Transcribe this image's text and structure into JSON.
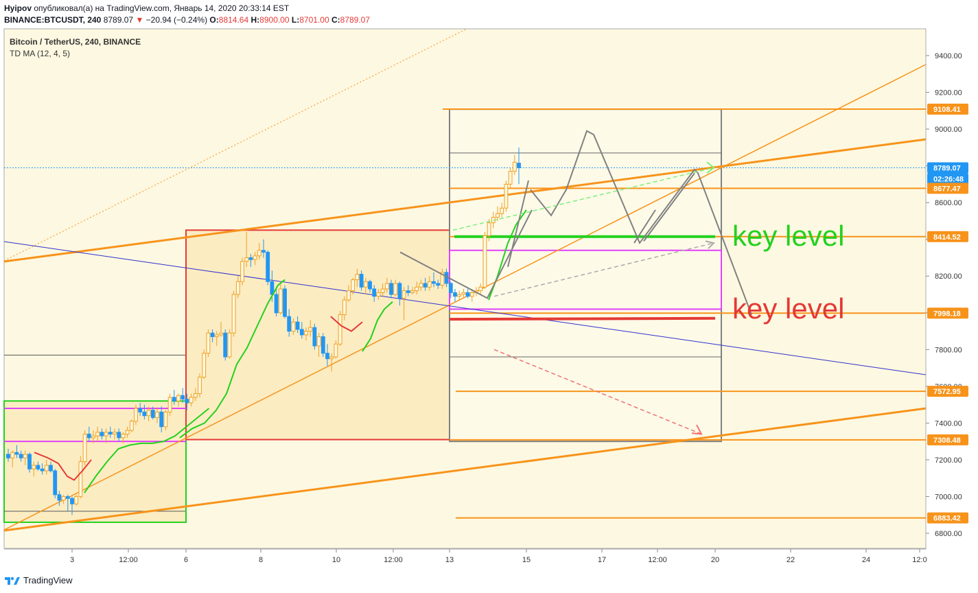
{
  "header": {
    "author": "Hyipov",
    "published": "опубликовал(а) на TradingView.com, Январь 14, 2020 20:33:14 EST",
    "symbol": "BINANCE:BTCUSDT, 240",
    "last": "8789.07",
    "change": "−20.94 (−0.24%)",
    "o_label": "O:",
    "o": "8814.64",
    "h_label": "H:",
    "h": "8900.00",
    "l_label": "L:",
    "l": "8701.00",
    "c_label": "C:",
    "c": "8789.07"
  },
  "legend": {
    "title": "Bitcoin / TetherUS, 240, BINANCE",
    "indicator": "TD MA (12, 4, 5)"
  },
  "footer": {
    "brand": "TradingView"
  },
  "colors": {
    "background": "#fdf8e1",
    "up": "#f0a020",
    "down": "#2196f3",
    "orange": "#f7931a",
    "green": "#22d11e",
    "red": "#e53935",
    "magenta": "#e040fb",
    "blue": "#3030d0",
    "gray": "#808080"
  },
  "chart_data": {
    "type": "candlestick",
    "title": "Bitcoin / TetherUS, 240, BINANCE",
    "ylim": [
      6720,
      9520
    ],
    "x_tick_labels": [
      "3",
      "12:00",
      "6",
      "8",
      "10",
      "12:00",
      "13",
      "15",
      "17",
      "12:00",
      "20",
      "22",
      "24",
      "12:0"
    ],
    "y_tick_labels": [
      "9400.00",
      "9200.00",
      "9000.00",
      "8800.00",
      "8600.00",
      "8400.00",
      "8200.00",
      "8000.00",
      "7800.00",
      "7600.00",
      "7400.00",
      "7200.00",
      "7000.00",
      "6800.00"
    ],
    "y_ticks": [
      9400,
      9200,
      9000,
      8800,
      8600,
      8400,
      8200,
      8000,
      7800,
      7600,
      7400,
      7200,
      7000,
      6800
    ],
    "price_labels": [
      {
        "text": "9108.41",
        "value": 9108.41,
        "color": "#f7931a"
      },
      {
        "text": "8789.07",
        "value": 8789.07,
        "color": "#2196f3"
      },
      {
        "text": "02:26:48",
        "value": 8730,
        "color": "#2196f3"
      },
      {
        "text": "8677.47",
        "value": 8677.47,
        "color": "#f7931a"
      },
      {
        "text": "8414.52",
        "value": 8414.52,
        "color": "#f7931a"
      },
      {
        "text": "7998.18",
        "value": 7998.18,
        "color": "#f7931a"
      },
      {
        "text": "7572.95",
        "value": 7572.95,
        "color": "#f7931a"
      },
      {
        "text": "7308.48",
        "value": 7308.48,
        "color": "#f7931a"
      },
      {
        "text": "6883.42",
        "value": 6883.42,
        "color": "#f7931a"
      }
    ],
    "annotations": [
      {
        "text": "key level",
        "color": "#22d11e",
        "value": 8414.52
      },
      {
        "text": "key level",
        "color": "#e53935",
        "value": 7998.18
      }
    ],
    "candles": [
      [
        7230,
        7260,
        7190,
        7210
      ],
      [
        7210,
        7250,
        7160,
        7240
      ],
      [
        7240,
        7280,
        7210,
        7230
      ],
      [
        7230,
        7250,
        7190,
        7210
      ],
      [
        7210,
        7250,
        7170,
        7230
      ],
      [
        7230,
        7240,
        7130,
        7150
      ],
      [
        7150,
        7190,
        7110,
        7170
      ],
      [
        7170,
        7190,
        7140,
        7150
      ],
      [
        7150,
        7180,
        7120,
        7140
      ],
      [
        7140,
        7200,
        7120,
        7170
      ],
      [
        7170,
        7190,
        7130,
        7140
      ],
      [
        7140,
        7150,
        6990,
        7010
      ],
      [
        7010,
        7030,
        6950,
        6980
      ],
      [
        6980,
        7010,
        6960,
        7000
      ],
      [
        7000,
        7010,
        6920,
        6990
      ],
      [
        6990,
        7000,
        6900,
        6960
      ],
      [
        6960,
        7010,
        6950,
        7000
      ],
      [
        7000,
        7220,
        6990,
        7190
      ],
      [
        7190,
        7360,
        7170,
        7340
      ],
      [
        7340,
        7380,
        7300,
        7320
      ],
      [
        7320,
        7360,
        7290,
        7330
      ],
      [
        7330,
        7380,
        7300,
        7350
      ],
      [
        7350,
        7370,
        7310,
        7330
      ],
      [
        7330,
        7370,
        7290,
        7350
      ],
      [
        7350,
        7380,
        7320,
        7340
      ],
      [
        7340,
        7370,
        7310,
        7350
      ],
      [
        7350,
        7370,
        7300,
        7320
      ],
      [
        7320,
        7350,
        7290,
        7340
      ],
      [
        7340,
        7380,
        7320,
        7360
      ],
      [
        7360,
        7420,
        7350,
        7410
      ],
      [
        7410,
        7500,
        7390,
        7480
      ],
      [
        7480,
        7510,
        7440,
        7460
      ],
      [
        7460,
        7500,
        7420,
        7440
      ],
      [
        7440,
        7490,
        7410,
        7470
      ],
      [
        7470,
        7490,
        7420,
        7430
      ],
      [
        7430,
        7480,
        7400,
        7460
      ],
      [
        7460,
        7490,
        7350,
        7380
      ],
      [
        7380,
        7470,
        7360,
        7460
      ],
      [
        7460,
        7560,
        7440,
        7540
      ],
      [
        7540,
        7580,
        7500,
        7520
      ],
      [
        7520,
        7560,
        7490,
        7550
      ],
      [
        7550,
        7590,
        7510,
        7530
      ],
      [
        7530,
        7560,
        7470,
        7510
      ],
      [
        7510,
        7560,
        7490,
        7540
      ],
      [
        7540,
        7590,
        7520,
        7560
      ],
      [
        7560,
        7670,
        7540,
        7650
      ],
      [
        7650,
        7800,
        7640,
        7780
      ],
      [
        7780,
        7910,
        7760,
        7890
      ],
      [
        7890,
        7910,
        7840,
        7870
      ],
      [
        7870,
        7900,
        7820,
        7880
      ],
      [
        7880,
        7950,
        7870,
        7890
      ],
      [
        7890,
        7910,
        7740,
        7760
      ],
      [
        7760,
        7910,
        7750,
        7890
      ],
      [
        7890,
        8120,
        7870,
        8100
      ],
      [
        8100,
        8200,
        8080,
        8170
      ],
      [
        8170,
        8300,
        8150,
        8280
      ],
      [
        8280,
        8440,
        8250,
        8300
      ],
      [
        8300,
        8320,
        8250,
        8290
      ],
      [
        8290,
        8330,
        8260,
        8310
      ],
      [
        8310,
        8380,
        8290,
        8340
      ],
      [
        8340,
        8400,
        8300,
        8330
      ],
      [
        8330,
        8340,
        8150,
        8170
      ],
      [
        8170,
        8230,
        8060,
        8100
      ],
      [
        8100,
        8130,
        7980,
        8000
      ],
      [
        8000,
        8160,
        7990,
        8130
      ],
      [
        8130,
        8150,
        7970,
        7980
      ],
      [
        7980,
        8020,
        7870,
        7900
      ],
      [
        7900,
        7970,
        7880,
        7950
      ],
      [
        7950,
        7980,
        7890,
        7910
      ],
      [
        7910,
        7950,
        7860,
        7880
      ],
      [
        7880,
        7920,
        7850,
        7900
      ],
      [
        7900,
        7960,
        7870,
        7920
      ],
      [
        7920,
        7940,
        7800,
        7820
      ],
      [
        7820,
        7890,
        7760,
        7870
      ],
      [
        7870,
        7890,
        7760,
        7780
      ],
      [
        7780,
        7830,
        7710,
        7750
      ],
      [
        7750,
        7780,
        7680,
        7760
      ],
      [
        7760,
        7850,
        7750,
        7830
      ],
      [
        7830,
        8010,
        7820,
        7990
      ],
      [
        7990,
        8090,
        7960,
        8070
      ],
      [
        8070,
        8150,
        8060,
        8120
      ],
      [
        8120,
        8190,
        8100,
        8180
      ],
      [
        8180,
        8240,
        8140,
        8210
      ],
      [
        8210,
        8230,
        8120,
        8140
      ],
      [
        8140,
        8190,
        8100,
        8170
      ],
      [
        8170,
        8180,
        8110,
        8130
      ],
      [
        8130,
        8150,
        8060,
        8090
      ],
      [
        8090,
        8130,
        8070,
        8110
      ],
      [
        8110,
        8160,
        8090,
        8130
      ],
      [
        8130,
        8190,
        8110,
        8160
      ],
      [
        8160,
        8180,
        8080,
        8100
      ],
      [
        8100,
        8180,
        8090,
        8160
      ],
      [
        8160,
        8170,
        8040,
        8080
      ],
      [
        8080,
        8140,
        7960,
        8120
      ],
      [
        8120,
        8150,
        8090,
        8110
      ],
      [
        8110,
        8140,
        8100,
        8120
      ],
      [
        8120,
        8170,
        8100,
        8140
      ],
      [
        8140,
        8180,
        8120,
        8160
      ],
      [
        8160,
        8190,
        8120,
        8140
      ],
      [
        8140,
        8200,
        8120,
        8170
      ],
      [
        8170,
        8220,
        8140,
        8160
      ],
      [
        8160,
        8180,
        8130,
        8150
      ],
      [
        8150,
        8240,
        8130,
        8220
      ],
      [
        8220,
        8240,
        8140,
        8160
      ],
      [
        8160,
        8170,
        8080,
        8110
      ],
      [
        8110,
        8130,
        8060,
        8090
      ],
      [
        8090,
        8120,
        8070,
        8100
      ],
      [
        8100,
        8130,
        8080,
        8110
      ],
      [
        8110,
        8130,
        8080,
        8090
      ],
      [
        8090,
        8130,
        8060,
        8110
      ],
      [
        8110,
        8140,
        8090,
        8120
      ],
      [
        8120,
        8160,
        8100,
        8140
      ],
      [
        8140,
        8440,
        8130,
        8420
      ],
      [
        8420,
        8510,
        8390,
        8490
      ],
      [
        8490,
        8550,
        8460,
        8520
      ],
      [
        8520,
        8580,
        8500,
        8540
      ],
      [
        8540,
        8600,
        8520,
        8570
      ],
      [
        8570,
        8720,
        8550,
        8700
      ],
      [
        8700,
        8790,
        8680,
        8770
      ],
      [
        8770,
        8860,
        8750,
        8820
      ],
      [
        8814.64,
        8900,
        8701,
        8789.07
      ]
    ],
    "td_ma_green": [
      7300,
      7340,
      7370,
      7390,
      7400,
      7410,
      7420,
      7440,
      7460,
      7480,
      7520,
      7600,
      7700,
      7800,
      7880,
      7950,
      8030,
      8110,
      8180,
      8220,
      8220,
      8160,
      8100,
      8050,
      7990,
      7930,
      7860,
      7800,
      7920,
      7990,
      8030,
      8070,
      8170,
      8280,
      8380,
      8470,
      8540,
      8580
    ],
    "td_ma_red": [
      7240,
      7210,
      7180,
      7130,
      7080,
      7080,
      7110,
      7150,
      7190,
      7170,
      7060,
      7090,
      8050,
      8020,
      8000,
      7980
    ]
  }
}
